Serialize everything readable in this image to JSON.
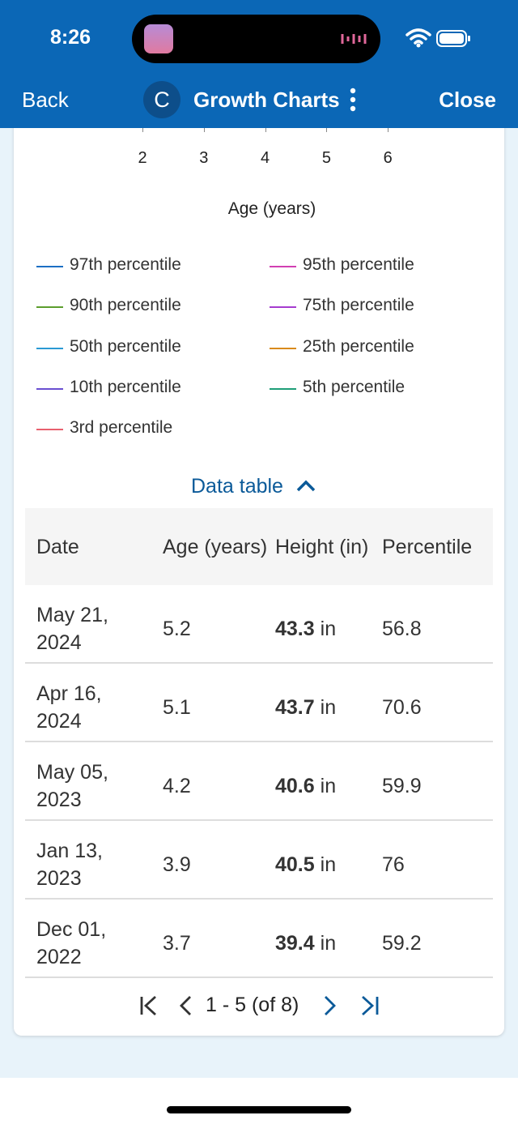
{
  "status_bar": {
    "time": "8:26"
  },
  "nav": {
    "back": "Back",
    "avatar": "C",
    "title": "Growth Charts",
    "close": "Close"
  },
  "chart": {
    "x_ticks": [
      2,
      3,
      4,
      5,
      6
    ],
    "x_label": "Age (years)",
    "legend": [
      {
        "name": "97th percentile",
        "color": "#1c6fc4"
      },
      {
        "name": "95th percentile",
        "color": "#d13fb2"
      },
      {
        "name": "90th percentile",
        "color": "#5c9e2e"
      },
      {
        "name": "75th percentile",
        "color": "#a53ccf"
      },
      {
        "name": "50th percentile",
        "color": "#2a9ad4"
      },
      {
        "name": "25th percentile",
        "color": "#d98a1c"
      },
      {
        "name": "10th percentile",
        "color": "#6a4fd1"
      },
      {
        "name": "5th percentile",
        "color": "#1f9e78"
      },
      {
        "name": "3rd percentile",
        "color": "#e8606e"
      }
    ]
  },
  "data_table": {
    "toggle": "Data table",
    "columns": [
      "Date",
      "Age (years)",
      "Height (in)",
      "Percentile"
    ],
    "rows": [
      {
        "date": "May 21, 2024",
        "age": "5.2",
        "height": "43.3",
        "unit": "in",
        "percentile": "56.8"
      },
      {
        "date": "Apr 16, 2024",
        "age": "5.1",
        "height": "43.7",
        "unit": "in",
        "percentile": "70.6"
      },
      {
        "date": "May 05, 2023",
        "age": "4.2",
        "height": "40.6",
        "unit": "in",
        "percentile": "59.9"
      },
      {
        "date": "Jan 13, 2023",
        "age": "3.9",
        "height": "40.5",
        "unit": "in",
        "percentile": "76"
      },
      {
        "date": "Dec 01, 2022",
        "age": "3.7",
        "height": "39.4",
        "unit": "in",
        "percentile": "59.2"
      }
    ],
    "pagination": "1 - 5 (of 8)"
  }
}
